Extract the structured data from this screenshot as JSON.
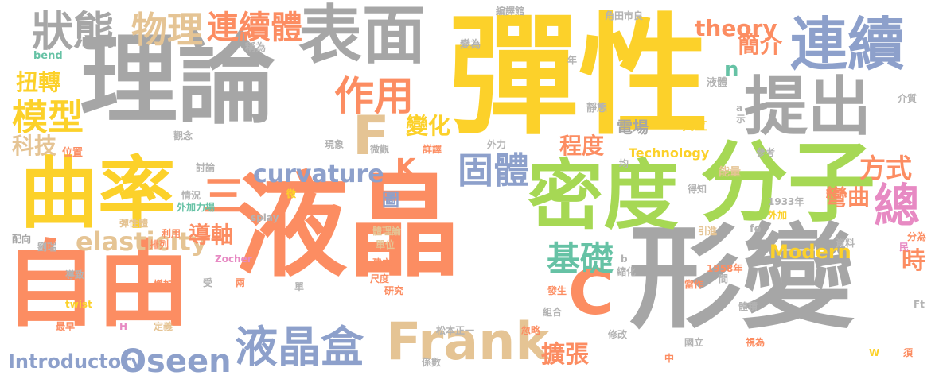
{
  "palette": {
    "gray": "#a6a6a6",
    "yellow": "#fcd12a",
    "orange": "#fc8d62",
    "green": "#a6d854",
    "blue": "#8da0cb",
    "pink": "#e78ac3",
    "tan": "#e5c494",
    "teal": "#66c2a5",
    "lightgray": "#b3b3b3"
  },
  "words": [
    {
      "text": "液晶",
      "color": "orange"
    },
    {
      "text": "彈性",
      "color": "yellow"
    },
    {
      "text": "理論",
      "color": "gray"
    },
    {
      "text": "形變",
      "color": "gray"
    },
    {
      "text": "自由",
      "color": "orange"
    },
    {
      "text": "密度",
      "color": "green"
    },
    {
      "text": "分子",
      "color": "green"
    },
    {
      "text": "曲率",
      "color": "yellow"
    },
    {
      "text": "連續",
      "color": "blue"
    },
    {
      "text": "表面",
      "color": "gray"
    },
    {
      "text": "提出",
      "color": "gray"
    },
    {
      "text": "Frank",
      "color": "tan"
    },
    {
      "text": "液晶盒",
      "color": "blue"
    },
    {
      "text": "狀態",
      "color": "gray"
    },
    {
      "text": "F",
      "color": "tan"
    },
    {
      "text": "C",
      "color": "orange"
    },
    {
      "text": "三",
      "color": "orange"
    },
    {
      "text": "作用",
      "color": "orange"
    },
    {
      "text": "連續體",
      "color": "orange"
    },
    {
      "text": "物理",
      "color": "tan"
    },
    {
      "text": "總",
      "color": "pink"
    },
    {
      "text": "固體",
      "color": "blue"
    },
    {
      "text": "模型",
      "color": "yellow"
    },
    {
      "text": "Oseen",
      "color": "blue"
    },
    {
      "text": "基礎",
      "color": "teal"
    },
    {
      "text": "curvature",
      "color": "blue"
    },
    {
      "text": "K",
      "color": "orange"
    },
    {
      "text": "elasticity",
      "color": "tan"
    },
    {
      "text": "變化",
      "color": "yellow"
    },
    {
      "text": "方式",
      "color": "orange"
    },
    {
      "text": "theory",
      "color": "orange"
    },
    {
      "text": "程度",
      "color": "orange"
    },
    {
      "text": "簡介",
      "color": "orange"
    },
    {
      "text": "扭轉",
      "color": "yellow"
    },
    {
      "text": "科技",
      "color": "tan"
    },
    {
      "text": "擴張",
      "color": "orange"
    },
    {
      "text": "導軸",
      "color": "orange"
    },
    {
      "text": "彎曲",
      "color": "orange"
    },
    {
      "text": "時",
      "color": "orange"
    },
    {
      "text": "Introductory",
      "color": "blue"
    },
    {
      "text": "Modern",
      "color": "yellow"
    },
    {
      "text": "n",
      "color": "teal"
    },
    {
      "text": "電場",
      "color": "gray"
    },
    {
      "text": "Technology",
      "color": "yellow"
    },
    {
      "text": "圖",
      "color": "blue"
    },
    {
      "text": "bend",
      "color": "teal"
    },
    {
      "text": "稱為",
      "color": "lightgray"
    },
    {
      "text": "變為",
      "color": "lightgray"
    },
    {
      "text": "編譯館",
      "color": "lightgray"
    },
    {
      "text": "角田市良",
      "color": "lightgray"
    },
    {
      "text": "年",
      "color": "lightgray"
    },
    {
      "text": "液體",
      "color": "lightgray"
    },
    {
      "text": "靜態",
      "color": "lightgray"
    },
    {
      "text": "a",
      "color": "lightgray"
    },
    {
      "text": "示",
      "color": "lightgray"
    },
    {
      "text": "介質",
      "color": "lightgray"
    },
    {
      "text": "獨立",
      "color": "yellow"
    },
    {
      "text": "觀念",
      "color": "lightgray"
    },
    {
      "text": "現象",
      "color": "lightgray"
    },
    {
      "text": "微觀",
      "color": "lightgray"
    },
    {
      "text": "詳譯",
      "color": "orange"
    },
    {
      "text": "外力",
      "color": "lightgray"
    },
    {
      "text": "參考",
      "color": "lightgray"
    },
    {
      "text": "位置",
      "color": "orange"
    },
    {
      "text": "討論",
      "color": "lightgray"
    },
    {
      "text": "均",
      "color": "lightgray"
    },
    {
      "text": "能量",
      "color": "tan"
    },
    {
      "text": "得知",
      "color": "lightgray"
    },
    {
      "text": "情況",
      "color": "lightgray"
    },
    {
      "text": "微",
      "color": "yellow"
    },
    {
      "text": "外加力場",
      "color": "teal"
    },
    {
      "text": "1933年",
      "color": "lightgray"
    },
    {
      "text": "外加",
      "color": "yellow"
    },
    {
      "text": "splay",
      "color": "lightgray"
    },
    {
      "text": "彈性體",
      "color": "tan"
    },
    {
      "text": "利用",
      "color": "orange"
    },
    {
      "text": "體理論",
      "color": "tan"
    },
    {
      "text": "fe",
      "color": "lightgray"
    },
    {
      "text": "引進",
      "color": "tan"
    },
    {
      "text": "資料",
      "color": "lightgray"
    },
    {
      "text": "分為",
      "color": "orange"
    },
    {
      "text": "配向",
      "color": "gray"
    },
    {
      "text": "劉瑞",
      "color": "lightgray"
    },
    {
      "text": "排列",
      "color": "orange"
    },
    {
      "text": "單位",
      "color": "tan"
    },
    {
      "text": "建立",
      "color": "orange"
    },
    {
      "text": "民",
      "color": "pink"
    },
    {
      "text": "Zocher",
      "color": "pink"
    },
    {
      "text": "b",
      "color": "lightgray"
    },
    {
      "text": "縮化",
      "color": "lightgray"
    },
    {
      "text": "1958年",
      "color": "orange"
    },
    {
      "text": "間",
      "color": "lightgray"
    },
    {
      "text": "導致",
      "color": "lightgray"
    },
    {
      "text": "尺度",
      "color": "orange"
    },
    {
      "text": "增加",
      "color": "orange"
    },
    {
      "text": "受",
      "color": "lightgray"
    },
    {
      "text": "兩",
      "color": "orange"
    },
    {
      "text": "單",
      "color": "lightgray"
    },
    {
      "text": "研究",
      "color": "orange"
    },
    {
      "text": "發生",
      "color": "orange"
    },
    {
      "text": "當作",
      "color": "orange"
    },
    {
      "text": "twist",
      "color": "yellow"
    },
    {
      "text": "組合",
      "color": "lightgray"
    },
    {
      "text": "體積",
      "color": "lightgray"
    },
    {
      "text": "Ft",
      "color": "lightgray"
    },
    {
      "text": "最早",
      "color": "orange"
    },
    {
      "text": "H",
      "color": "pink"
    },
    {
      "text": "定義",
      "color": "tan"
    },
    {
      "text": "松本正一",
      "color": "lightgray"
    },
    {
      "text": "修改",
      "color": "lightgray"
    },
    {
      "text": "忽略",
      "color": "orange"
    },
    {
      "text": "國立",
      "color": "lightgray"
    },
    {
      "text": "視為",
      "color": "orange"
    },
    {
      "text": "中",
      "color": "orange"
    },
    {
      "text": "係數",
      "color": "lightgray"
    },
    {
      "text": "W",
      "color": "yellow"
    },
    {
      "text": "須",
      "color": "orange"
    }
  ]
}
